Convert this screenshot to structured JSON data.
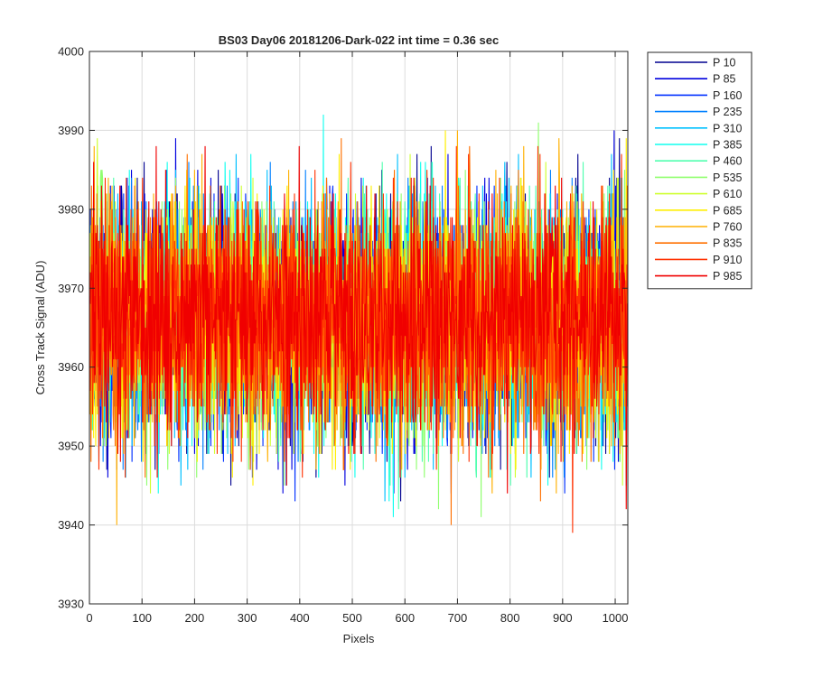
{
  "chart_data": {
    "type": "line",
    "title": "BS03 Day06 20181206-Dark-022 int time = 0.36 sec",
    "xlabel": "Pixels",
    "ylabel": "Cross Track Signal (ADU)",
    "xlim": [
      0,
      1024
    ],
    "ylim": [
      3930,
      4000
    ],
    "xticks": [
      0,
      100,
      200,
      300,
      400,
      500,
      600,
      700,
      800,
      900,
      1000
    ],
    "yticks": [
      3930,
      3940,
      3950,
      3960,
      3970,
      3980,
      3990,
      4000
    ],
    "grid": true,
    "legend_position": "outside-top-right",
    "n_points": 1024,
    "series": [
      {
        "name": "P 10",
        "color": "#00008F",
        "mean": 3966,
        "std": 7.5,
        "seed": 11
      },
      {
        "name": "P 85",
        "color": "#0000DF",
        "mean": 3966,
        "std": 7.5,
        "seed": 23
      },
      {
        "name": "P 160",
        "color": "#0030FF",
        "mean": 3966,
        "std": 7.5,
        "seed": 37
      },
      {
        "name": "P 235",
        "color": "#0080FF",
        "mean": 3966,
        "std": 7.5,
        "seed": 41
      },
      {
        "name": "P 310",
        "color": "#00C0FF",
        "mean": 3966,
        "std": 7.5,
        "seed": 53
      },
      {
        "name": "P 385",
        "color": "#10FFEF",
        "mean": 3966,
        "std": 7.5,
        "seed": 67
      },
      {
        "name": "P 460",
        "color": "#50FFAF",
        "mean": 3966,
        "std": 7.5,
        "seed": 71
      },
      {
        "name": "P 535",
        "color": "#90FF6F",
        "mean": 3966,
        "std": 7.5,
        "seed": 83
      },
      {
        "name": "P 610",
        "color": "#CFFF30",
        "mean": 3966,
        "std": 7.5,
        "seed": 97
      },
      {
        "name": "P 685",
        "color": "#FFEF00",
        "mean": 3966,
        "std": 7.5,
        "seed": 101
      },
      {
        "name": "P 760",
        "color": "#FFB000",
        "mean": 3966,
        "std": 7.5,
        "seed": 113
      },
      {
        "name": "P 835",
        "color": "#FF7000",
        "mean": 3966,
        "std": 7.5,
        "seed": 127
      },
      {
        "name": "P 910",
        "color": "#FF3000",
        "mean": 3966,
        "std": 7.5,
        "seed": 131
      },
      {
        "name": "P 985",
        "color": "#F00000",
        "mean": 3966,
        "std": 7.5,
        "seed": 149
      }
    ]
  }
}
